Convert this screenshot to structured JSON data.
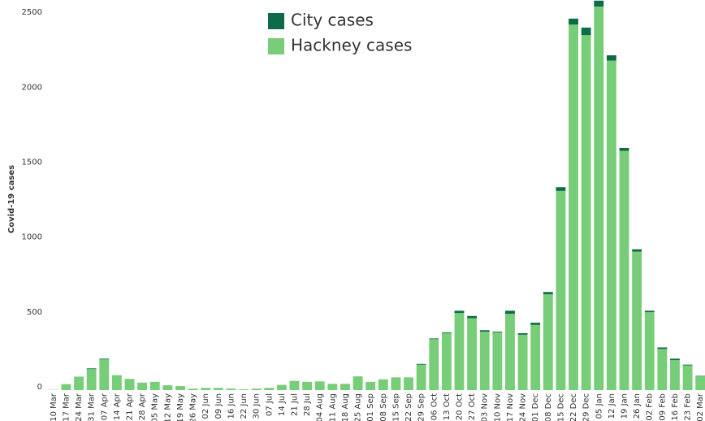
{
  "chart_data": {
    "type": "stacked_bar",
    "y_label": "Covid-19 cases",
    "categories": [
      "10 Mar",
      "17 Mar",
      "24 Mar",
      "31 Mar",
      "07 Apr",
      "14 Apr",
      "21 Apr",
      "28 Apr",
      "05 May",
      "12 May",
      "19 May",
      "26 May",
      "02 Jun",
      "09 Jun",
      "16 Jun",
      "22 Jun",
      "30 Jun",
      "07 Jul",
      "14 Jul",
      "21 Jul",
      "28 Jul",
      "04 Aug",
      "11 Aug",
      "18 Aug",
      "25 Aug",
      "01 Sep",
      "08 Sep",
      "15 Sep",
      "22 Sep",
      "29 Sep",
      "06 Oct",
      "13 Oct",
      "20 Oct",
      "27 Oct",
      "03 Nov",
      "10 Nov",
      "17 Nov",
      "24 Nov",
      "01 Dec",
      "08 Dec",
      "15 Dec",
      "22 Dec",
      "29 Dec",
      "05 Jan",
      "12 Jan",
      "19 Jan",
      "26 Jan",
      "02 Feb",
      "09 Feb",
      "16 Feb",
      "23 Feb",
      "02 Mar"
    ],
    "series": [
      {
        "name": "Hackney cases",
        "color": "#78cd78",
        "values": [
          2,
          40,
          90,
          140,
          205,
          100,
          75,
          50,
          55,
          32,
          27,
          10,
          15,
          15,
          10,
          5,
          10,
          15,
          35,
          62,
          55,
          58,
          42,
          42,
          92,
          55,
          72,
          85,
          85,
          170,
          340,
          380,
          515,
          480,
          390,
          385,
          510,
          370,
          435,
          640,
          1330,
          2440,
          2370,
          2560,
          2200,
          1597,
          925,
          520,
          275,
          200,
          165,
          92
        ]
      },
      {
        "name": "City cases",
        "color": "#0e6b48",
        "values": [
          0,
          0,
          0,
          5,
          5,
          0,
          0,
          0,
          0,
          0,
          0,
          0,
          0,
          0,
          0,
          0,
          0,
          0,
          0,
          0,
          0,
          0,
          0,
          0,
          0,
          0,
          0,
          0,
          0,
          5,
          5,
          5,
          15,
          15,
          10,
          5,
          20,
          10,
          15,
          15,
          25,
          40,
          50,
          40,
          35,
          20,
          15,
          10,
          10,
          10,
          5,
          3
        ]
      }
    ],
    "ylim": [
      0,
      2550
    ],
    "yticks": [
      0,
      500,
      1000,
      1500,
      2000,
      2500
    ],
    "grid": false,
    "legend": "top"
  }
}
